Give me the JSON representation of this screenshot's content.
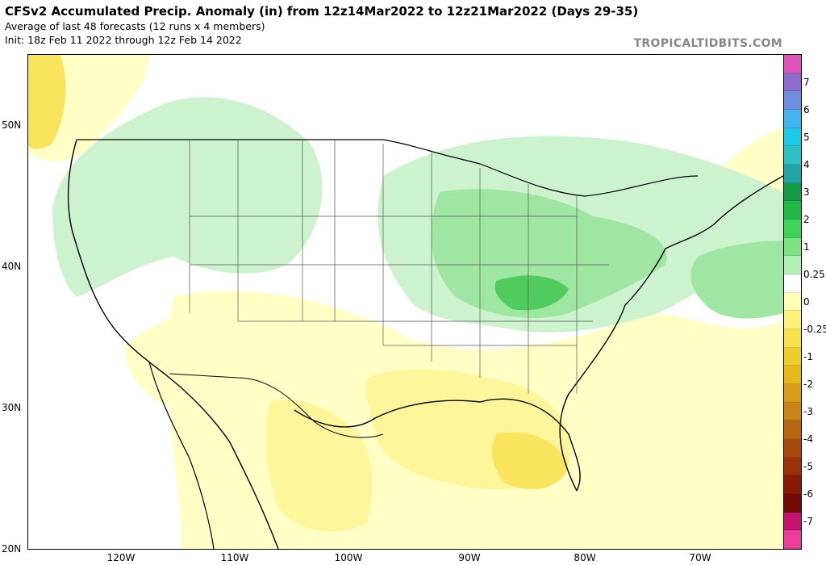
{
  "header": {
    "title": "CFSv2 Accumulated Precip. Anomaly (in) from 12z14Mar2022 to 12z21Mar2022 (Days 29-35)",
    "subtitle1": "Average of last 48 forecasts (12 runs x 4 members)",
    "subtitle2": "Init: 18z Feb 11 2022 through 12z Feb 14 2022",
    "credit": "TROPICALTIDBITS.COM"
  },
  "axes": {
    "lat_labels": [
      "50N",
      "40N",
      "30N",
      "20N"
    ],
    "lon_labels": [
      "120W",
      "110W",
      "100W",
      "90W",
      "80W",
      "70W"
    ]
  },
  "colorbar": {
    "colors": [
      "#dd55bb",
      "#8c6ccf",
      "#6e8fe0",
      "#42b3ee",
      "#1cc8e6",
      "#2fc0c4",
      "#22a4a6",
      "#149944",
      "#22b847",
      "#3fd35a",
      "#7de383",
      "#b5f0b6",
      "#ffffff",
      "#ffffb5",
      "#fff27a",
      "#f7e24d",
      "#edcd2b",
      "#e6b81a",
      "#d79c18",
      "#c98514",
      "#b86610",
      "#a84a0c",
      "#983309",
      "#861b06",
      "#720b05",
      "#c4136e",
      "#ee3c9c"
    ],
    "labels": [
      "7",
      "6",
      "5",
      "4",
      "3",
      "2",
      "1",
      "0.25",
      "0",
      "-0.25",
      "-1",
      "-2",
      "-3",
      "-4",
      "-5",
      "-6",
      "-7"
    ]
  },
  "map_colors": {
    "green_light": "#cdf3ce",
    "green_mid": "#9fe6a2",
    "green_strong": "#6fd77a",
    "green_dark": "#4fcb5f",
    "yellow_light": "#ffffc6",
    "yellow_mid": "#fff59a",
    "yellow_strong": "#f9e45d",
    "coast": "#000000",
    "border": "#555555"
  }
}
